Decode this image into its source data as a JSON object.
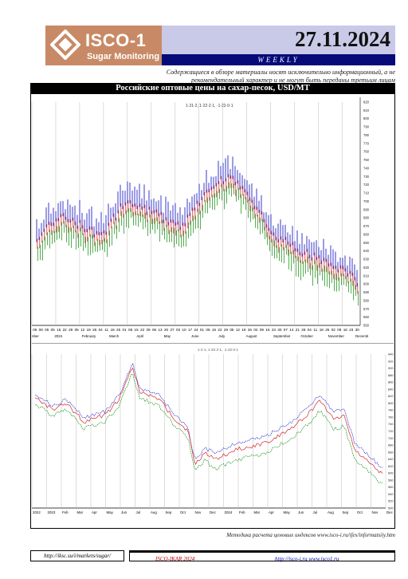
{
  "header": {
    "logo_brand": "ISCO-1",
    "logo_sub": "Sugar Monitoring",
    "date": "27.11.2024",
    "period": "WEEKLY",
    "disclaimer": "Содержащиеся в обзоре материалы носят исключительно информационный, а не рекомендательный характер и не могут быть переданы третьим лицам"
  },
  "chart_title": "Российские оптовые цены на сахар-песок, USD/MT",
  "top_chart": {
    "legend": "1·21·2, 1·22·2·1, ·1·22·0·1",
    "date_labels": [
      "05",
      "08",
      "05",
      "05",
      "15",
      "22",
      "29",
      "05",
      "12",
      "19",
      "26",
      "04",
      "11",
      "18",
      "25",
      "01",
      "08",
      "15",
      "22",
      "29",
      "06",
      "13",
      "20",
      "27",
      "03",
      "10",
      "17",
      "24",
      "01",
      "08",
      "15",
      "22",
      "29",
      "05",
      "12",
      "19",
      "26",
      "02",
      "09",
      "16",
      "23",
      "30",
      "07",
      "14",
      "21",
      "28",
      "04",
      "11",
      "18",
      "25",
      "02",
      "09",
      "16",
      "23",
      "30"
    ],
    "month_labels": [
      "nber",
      "2024",
      "February",
      "March",
      "April",
      "May",
      "June",
      "July",
      "August",
      "September",
      "October",
      "November",
      "Decemb"
    ],
    "y_labels": [
      "820",
      "810",
      "800",
      "790",
      "780",
      "770",
      "760",
      "750",
      "740",
      "730",
      "720",
      "710",
      "700",
      "690",
      "680",
      "670",
      "660",
      "650",
      "640",
      "630",
      "620",
      "610",
      "600",
      "590",
      "580",
      "570",
      "560",
      "550"
    ]
  },
  "bottom_chart": {
    "legend": "1·2·1, 1·22·2·1, ·1·22·0·1",
    "month_labels": [
      "2022",
      "2023",
      "Feb",
      "Mar",
      "Apr",
      "May",
      "Jun",
      "Jul",
      "Aug",
      "Sep",
      "Oct",
      "Nov",
      "Dec",
      "2024",
      "Feb",
      "Mar",
      "Apr",
      "May",
      "Jun",
      "Jul",
      "Aug",
      "Sep",
      "Oct",
      "Nov",
      "Dec"
    ],
    "y_labels": [
      "940",
      "920",
      "900",
      "880",
      "860",
      "840",
      "820",
      "800",
      "780",
      "760",
      "740",
      "720",
      "700",
      "680",
      "660",
      "640",
      "620",
      "600",
      "580",
      "560",
      "540",
      "520",
      "500"
    ]
  },
  "colors": {
    "buy": "#2323c8",
    "sell": "#d22828",
    "low": "#2a9a2a",
    "brand": "#c88a66",
    "navy": "#070b7a"
  },
  "footer": {
    "method_note": "Методика расчета ценовых индексов www.isco-i.ru/ifes/informatsiiy.htm",
    "left_link": "http://iksc.su/i/markets/sugar/",
    "middle_text": "ISCO-IKAR 2024",
    "right_links": "http://isco-i.ru        www.isco1.ru"
  }
}
